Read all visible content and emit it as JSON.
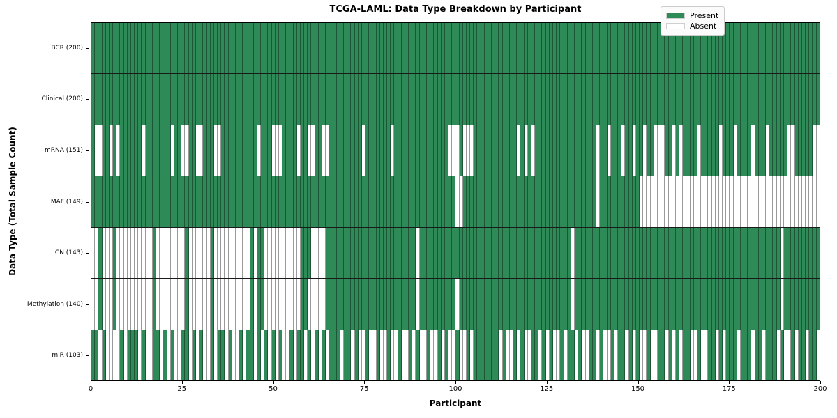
{
  "chart_data": {
    "type": "heatmap",
    "title": "TCGA-LAML: Data Type Breakdown by Participant",
    "xlabel": "Participant",
    "ylabel": "Data Type (Total Sample Count)",
    "x_range": [
      0,
      200
    ],
    "x_ticks": [
      0,
      25,
      50,
      75,
      100,
      125,
      150,
      175,
      200
    ],
    "grid": "row-separators-only",
    "legend_position": "upper right",
    "legend": [
      {
        "label": "Present",
        "color": "#2e8b57"
      },
      {
        "label": "Absent",
        "color": "#ffffff"
      }
    ],
    "encoding_note": "presence: one char per participant (left=0 to right=199), 1=Present, 0=Absent",
    "rows": [
      {
        "label": "BCR (200)",
        "data_type": "BCR",
        "present_count": 200,
        "presence": "1111111111111111111111111111111111111111111111111111111111111111111111111111111111111111111111111111111111111111111111111111111111111111111111111111111111111111111111111111111111111111111111111111111111"
      },
      {
        "label": "Clinical (200)",
        "data_type": "Clinical",
        "present_count": 200,
        "presence": "1111111111111111111111111111111111111111111111111111111111111111111111111111111111111111111111111111111111111111111111111111111111111111111111111111111111111111111111111111111111111111111111111111111111"
      },
      {
        "label": "mRNA (151)",
        "data_type": "mRNA",
        "present_count": 151,
        "presence": "1001101011111101111111011001100111001111111111011100011110110011001111111110111111101111111111111110001000111111111111010101111111111111111101101110110110110001101011110111110111011110111011111001111100"
      },
      {
        "label": "MAF (149)",
        "data_type": "MAF",
        "present_count": 149,
        "presence": "1111111111111111111111111111111111111111111111111111111111111111111111111111111111111111111111111111100111111111111111111111111111111111111101111111111100000000000000000000000000000000000000000000000000"
      },
      {
        "label": "CN (143)",
        "data_type": "CN",
        "present_count": 143,
        "presence": "0010001000000000010000000010000001000000000010110000000000111000011111111111111111111111110111111111111111111111111111111111111111111011111111111111111111111111111111111111111111111111111111101111111111"
      },
      {
        "label": "Methylation (140)",
        "data_type": "Methylation",
        "present_count": 140,
        "presence": "0010001000000000010000000010000001000000000010110000000000110000011111111111111111111111110111111111101111111111111111111111111111111011111111111111111111111111111111111111111111111111111111101111111111"
      },
      {
        "label": "miR (103)",
        "data_type": "miR",
        "present_count": 103,
        "presence": "1101000010111010011010100110101001011010010110101010100101101010101110110100100100100100101001001010010010111111101001010011010100101101001101001011010100100110101011001001101011101110110111010010110110"
      }
    ]
  },
  "colors": {
    "present": "#2e8b57",
    "absent": "#ffffff",
    "present_edge": "rgba(0,0,0,0.38)",
    "absent_edge": "#9a9a9a",
    "row_separator": "#1a1a1a",
    "plot_border": "#000000"
  }
}
